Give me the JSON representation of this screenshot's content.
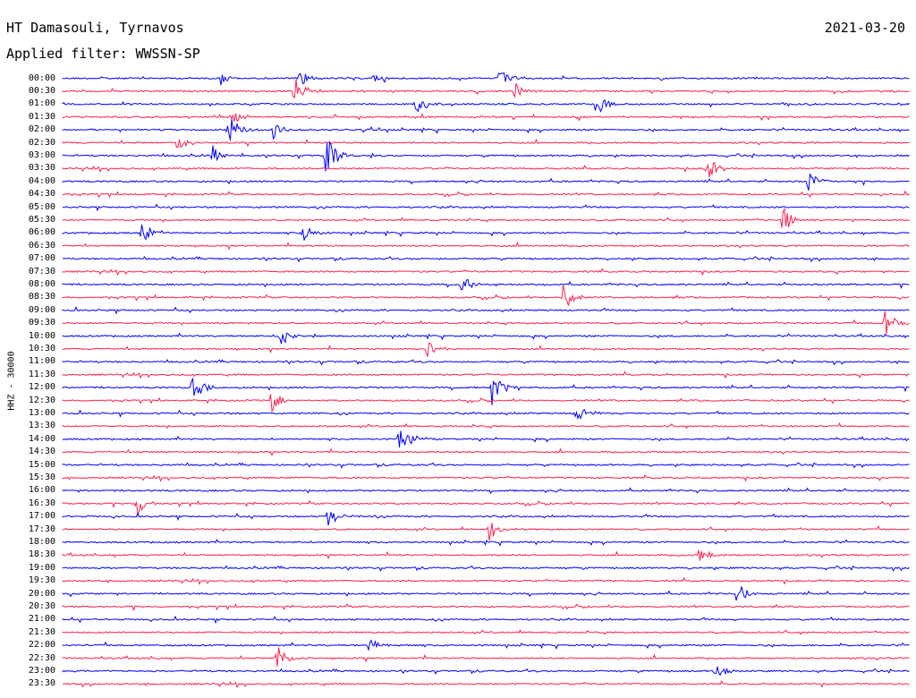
{
  "chart_data": {
    "type": "line",
    "title": "HT Damasouli, Tyrnavos",
    "subtitle": "Applied filter: WWSSN-SP",
    "date": "2021-03-20",
    "ylabel": "HHZ - 30000",
    "tick_labels": [
      "00:00",
      "00:30",
      "01:00",
      "01:30",
      "02:00",
      "02:30",
      "03:00",
      "03:30",
      "04:00",
      "04:30",
      "05:00",
      "05:30",
      "06:00",
      "06:30",
      "07:00",
      "07:30",
      "08:00",
      "08:30",
      "09:00",
      "09:30",
      "10:00",
      "10:30",
      "11:00",
      "11:30",
      "12:00",
      "12:30",
      "13:00",
      "13:30",
      "14:00",
      "14:30",
      "15:00",
      "15:30",
      "16:00",
      "16:30",
      "17:00",
      "17:30",
      "18:00",
      "18:30",
      "19:00",
      "19:30",
      "20:00",
      "20:30",
      "21:00",
      "21:30",
      "22:00",
      "22:30",
      "23:00",
      "23:30"
    ],
    "series_colors": [
      "#0000ff",
      "#ff1f4f"
    ],
    "events": [
      {
        "trace": "00:00",
        "minute": 5.6,
        "amp": 8
      },
      {
        "trace": "00:00",
        "minute": 8.4,
        "amp": 12
      },
      {
        "trace": "00:00",
        "minute": 11.0,
        "amp": 6
      },
      {
        "trace": "00:00",
        "minute": 15.5,
        "amp": 10
      },
      {
        "trace": "00:30",
        "minute": 8.2,
        "amp": 18
      },
      {
        "trace": "00:30",
        "minute": 16.0,
        "amp": 12
      },
      {
        "trace": "01:00",
        "minute": 12.5,
        "amp": 14
      },
      {
        "trace": "01:00",
        "minute": 18.9,
        "amp": 16
      },
      {
        "trace": "01:30",
        "minute": 6.0,
        "amp": 10
      },
      {
        "trace": "02:00",
        "minute": 5.9,
        "amp": 18
      },
      {
        "trace": "02:00",
        "minute": 7.4,
        "amp": 14
      },
      {
        "trace": "02:30",
        "minute": 4.1,
        "amp": 12
      },
      {
        "trace": "03:00",
        "minute": 9.3,
        "amp": 26
      },
      {
        "trace": "03:00",
        "minute": 5.3,
        "amp": 10
      },
      {
        "trace": "03:30",
        "minute": 22.8,
        "amp": 16
      },
      {
        "trace": "04:00",
        "minute": 26.4,
        "amp": 14
      },
      {
        "trace": "05:30",
        "minute": 25.5,
        "amp": 18
      },
      {
        "trace": "06:00",
        "minute": 8.5,
        "amp": 12
      },
      {
        "trace": "06:00",
        "minute": 2.8,
        "amp": 14
      },
      {
        "trace": "08:00",
        "minute": 14.1,
        "amp": 12
      },
      {
        "trace": "08:30",
        "minute": 17.7,
        "amp": 20
      },
      {
        "trace": "09:30",
        "minute": 29.1,
        "amp": 18
      },
      {
        "trace": "10:00",
        "minute": 7.7,
        "amp": 14
      },
      {
        "trace": "10:30",
        "minute": 12.9,
        "amp": 14
      },
      {
        "trace": "12:00",
        "minute": 4.6,
        "amp": 18
      },
      {
        "trace": "12:00",
        "minute": 15.2,
        "amp": 22
      },
      {
        "trace": "12:30",
        "minute": 7.4,
        "amp": 14
      },
      {
        "trace": "13:00",
        "minute": 18.2,
        "amp": 12
      },
      {
        "trace": "14:00",
        "minute": 11.9,
        "amp": 16
      },
      {
        "trace": "16:30",
        "minute": 2.6,
        "amp": 18
      },
      {
        "trace": "17:00",
        "minute": 9.4,
        "amp": 12
      },
      {
        "trace": "17:30",
        "minute": 15.1,
        "amp": 14
      },
      {
        "trace": "18:30",
        "minute": 22.5,
        "amp": 12
      },
      {
        "trace": "20:00",
        "minute": 23.9,
        "amp": 14
      },
      {
        "trace": "22:00",
        "minute": 10.8,
        "amp": 12
      },
      {
        "trace": "22:30",
        "minute": 7.6,
        "amp": 16
      },
      {
        "trace": "23:00",
        "minute": 23.1,
        "amp": 10
      }
    ]
  }
}
